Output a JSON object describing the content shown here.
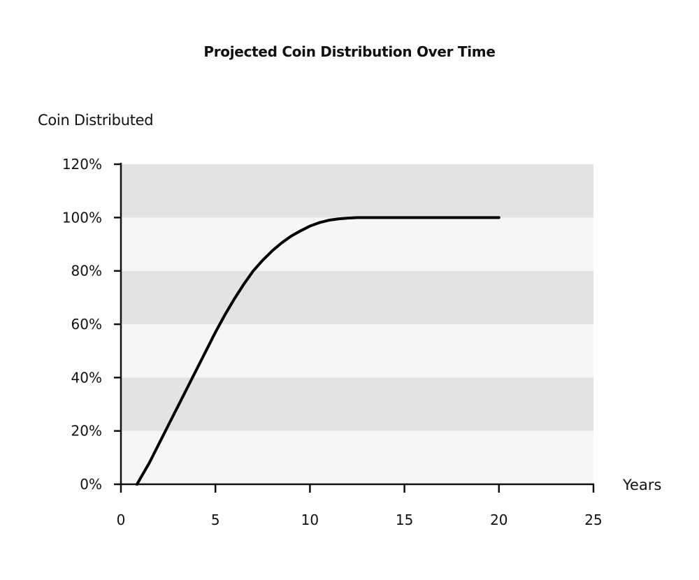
{
  "chart_data": {
    "type": "line",
    "title": "Projected Coin Distribution Over Time",
    "ylabel": "Coin Distributed",
    "xlabel": "Years",
    "xlim": [
      0,
      25
    ],
    "ylim": [
      0,
      120
    ],
    "x_ticks": [
      0,
      5,
      10,
      15,
      20,
      25
    ],
    "y_ticks": [
      0,
      20,
      40,
      60,
      80,
      100,
      120
    ],
    "y_tick_labels": [
      "0%",
      "20%",
      "40%",
      "60%",
      "80%",
      "100%",
      "120%"
    ],
    "grid": "alternating horizontal bands",
    "band_colors": [
      "#f6f6f6",
      "#e2e3e2"
    ],
    "line_color": "#000000",
    "series": [
      {
        "x": [
          0.85,
          1.5,
          2,
          2.5,
          3,
          3.5,
          4,
          4.5,
          5,
          5.5,
          6,
          6.5,
          7,
          7.5,
          8,
          8.5,
          9,
          9.5,
          10,
          10.5,
          11,
          11.5,
          12,
          12.5,
          13,
          14,
          15,
          16,
          17,
          18,
          19,
          20
        ],
        "y": [
          0,
          8,
          15,
          22,
          29,
          36,
          43,
          50,
          57,
          63.5,
          69.5,
          75,
          80,
          84,
          87.5,
          90.5,
          93,
          95,
          96.8,
          98.1,
          99,
          99.5,
          99.8,
          100,
          100,
          100,
          100,
          100,
          100,
          100,
          100,
          100
        ]
      }
    ]
  }
}
